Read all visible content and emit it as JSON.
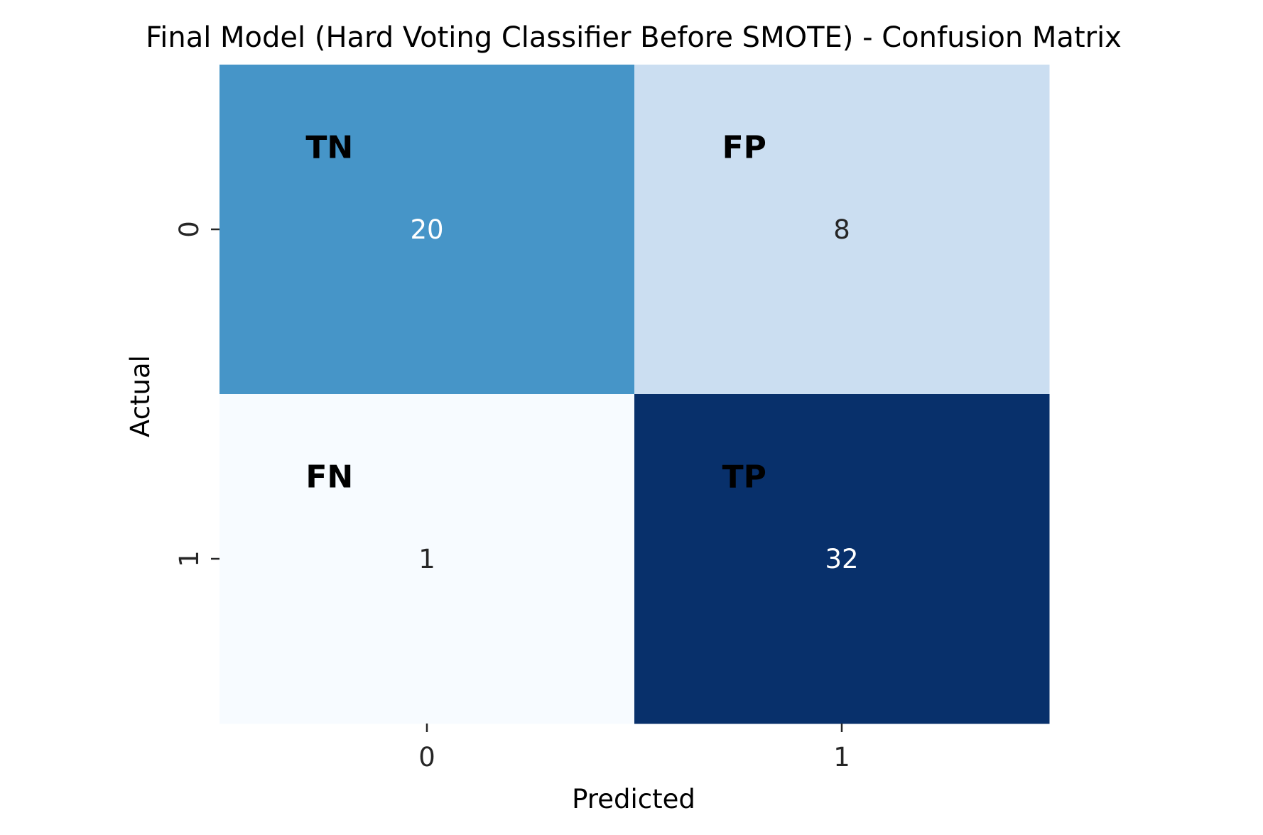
{
  "chart_data": {
    "type": "heatmap",
    "title": "Final Model (Hard Voting Classifier Before SMOTE) - Confusion Matrix",
    "xlabel": "Predicted",
    "ylabel": "Actual",
    "x_categories": [
      "0",
      "1"
    ],
    "y_categories": [
      "0",
      "1"
    ],
    "matrix": [
      [
        20,
        8
      ],
      [
        1,
        32
      ]
    ],
    "cell_tags": [
      [
        "TN",
        "FP"
      ],
      [
        "FN",
        "TP"
      ]
    ],
    "colormap": "Blues",
    "colors": {
      "low": "#f7fbff",
      "mid_low": "#c6dbef",
      "mid": "#6baed6",
      "mid_high": "#2171b5",
      "high": "#08306b"
    },
    "colorbar": false
  }
}
